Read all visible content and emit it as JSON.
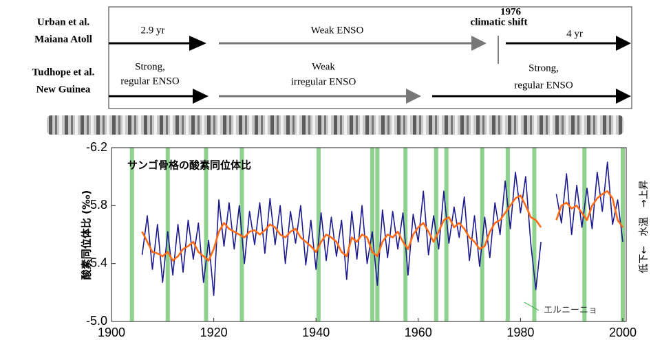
{
  "diagram": {
    "rows": [
      {
        "label": [
          "Urban et al.",
          "Maiana Atoll"
        ],
        "segments": [
          {
            "text": [
              "2.9 yr"
            ]
          },
          {
            "text": [
              "Weak  ENSO"
            ]
          },
          {
            "text": [
              "4 yr"
            ]
          }
        ]
      },
      {
        "label": [
          "Tudhope et al.",
          "New Guinea"
        ],
        "segments": [
          {
            "text": [
              "Strong,",
              "regular ENSO"
            ]
          },
          {
            "text": [
              "Weak",
              "irregular ENSO"
            ]
          },
          {
            "text": [
              "Strong,",
              "regular ENSO"
            ]
          }
        ]
      }
    ],
    "shift": [
      "1976",
      "climatic shift"
    ]
  },
  "chart_data": {
    "type": "line",
    "annotation": "サンゴ骨格の酸素同位体比",
    "event_label": "エルニーニョ",
    "y_label": "酸素同位体比 (‰)",
    "y2_label": "低下←　水温　→上昇",
    "xlim": [
      1900,
      2000
    ],
    "xticks": [
      1900,
      1920,
      1940,
      1960,
      1980,
      2000
    ],
    "ylim": [
      -5.0,
      -6.2
    ],
    "yticks": [
      -6.2,
      -5.8,
      -5.4,
      {
        "value": -5,
        "label": "-5.0"
      }
    ],
    "highlight_color": "#8fd18f",
    "highlight_x": [
      1904,
      1911,
      1918.5,
      1925.5,
      1940.5,
      1951,
      1952,
      1957.5,
      1963.5,
      1965.5,
      1972.5,
      1977.5,
      1982.7,
      1992.5,
      2000
    ],
    "x": [
      1906,
      1907,
      1908,
      1909,
      1910,
      1911,
      1912,
      1913,
      1914,
      1915,
      1916,
      1917,
      1918,
      1919,
      1920,
      1921,
      1922,
      1923,
      1924,
      1925,
      1926,
      1927,
      1928,
      1929,
      1930,
      1931,
      1932,
      1933,
      1934,
      1935,
      1936,
      1937,
      1938,
      1939,
      1940,
      1941,
      1942,
      1943,
      1944,
      1945,
      1946,
      1947,
      1948,
      1949,
      1950,
      1951,
      1952,
      1953,
      1954,
      1955,
      1956,
      1957,
      1958,
      1959,
      1960,
      1961,
      1962,
      1963,
      1964,
      1965,
      1966,
      1967,
      1968,
      1969,
      1970,
      1971,
      1972,
      1973,
      1974,
      1975,
      1976,
      1977,
      1978,
      1979,
      1980,
      1981,
      1982,
      1983,
      1984,
      1985,
      1986,
      1987,
      1988,
      1989,
      1990,
      1991,
      1992,
      1993,
      1994,
      1995,
      1996,
      1997,
      1998,
      1999,
      2000
    ],
    "series": [
      {
        "color": "#1c1a8e",
        "width": 1.6,
        "values": [
          -5.46,
          -5.73,
          -5.36,
          -5.67,
          -5.27,
          -5.62,
          -5.32,
          -5.67,
          -5.34,
          -5.7,
          -5.43,
          -5.68,
          -5.27,
          -5.56,
          -5.18,
          -5.84,
          -5.52,
          -5.82,
          -5.5,
          -5.8,
          -5.4,
          -5.76,
          -5.53,
          -5.82,
          -5.47,
          -5.85,
          -5.53,
          -5.8,
          -5.4,
          -5.76,
          -5.54,
          -5.8,
          -5.39,
          -5.7,
          -5.36,
          -5.75,
          -5.42,
          -5.72,
          -5.45,
          -5.7,
          -5.29,
          -5.76,
          -5.43,
          -5.8,
          -5.4,
          -5.62,
          -5.25,
          -5.77,
          -5.44,
          -5.76,
          -5.5,
          -5.75,
          -5.32,
          -5.74,
          -5.55,
          -5.9,
          -5.46,
          -5.73,
          -5.5,
          -5.9,
          -5.54,
          -5.79,
          -5.58,
          -5.86,
          -5.42,
          -5.73,
          -5.38,
          -5.72,
          -5.44,
          -5.82,
          -5.6,
          -5.97,
          -5.64,
          -6.03,
          -5.75,
          -6.0,
          -5.54,
          -5.22,
          -5.55,
          null,
          null,
          -5.88,
          -5.68,
          -6.02,
          -5.6,
          -5.94,
          -5.65,
          -5.92,
          -5.64,
          -6.03,
          -5.76,
          -6.1,
          -5.67,
          -5.84,
          -5.55
        ]
      },
      {
        "color": "#ff6a13",
        "width": 2.6,
        "values": [
          -5.62,
          -5.55,
          -5.48,
          -5.47,
          -5.45,
          -5.48,
          -5.42,
          -5.45,
          -5.5,
          -5.52,
          -5.55,
          -5.48,
          -5.45,
          -5.42,
          -5.5,
          -5.62,
          -5.68,
          -5.64,
          -5.62,
          -5.6,
          -5.58,
          -5.62,
          -5.63,
          -5.6,
          -5.63,
          -5.67,
          -5.65,
          -5.6,
          -5.58,
          -5.62,
          -5.64,
          -5.58,
          -5.55,
          -5.52,
          -5.48,
          -5.55,
          -5.6,
          -5.58,
          -5.55,
          -5.48,
          -5.45,
          -5.58,
          -5.55,
          -5.6,
          -5.58,
          -5.48,
          -5.45,
          -5.55,
          -5.6,
          -5.58,
          -5.62,
          -5.55,
          -5.5,
          -5.6,
          -5.65,
          -5.68,
          -5.62,
          -5.55,
          -5.62,
          -5.7,
          -5.72,
          -5.65,
          -5.68,
          -5.64,
          -5.58,
          -5.55,
          -5.5,
          -5.52,
          -5.62,
          -5.68,
          -5.7,
          -5.75,
          -5.8,
          -5.85,
          -5.87,
          -5.8,
          -5.72,
          -5.7,
          -5.65,
          null,
          null,
          -5.7,
          -5.8,
          -5.82,
          -5.78,
          -5.8,
          -5.75,
          -5.7,
          -5.8,
          -5.85,
          -5.88,
          -5.9,
          -5.85,
          -5.7,
          -5.65
        ]
      }
    ]
  }
}
